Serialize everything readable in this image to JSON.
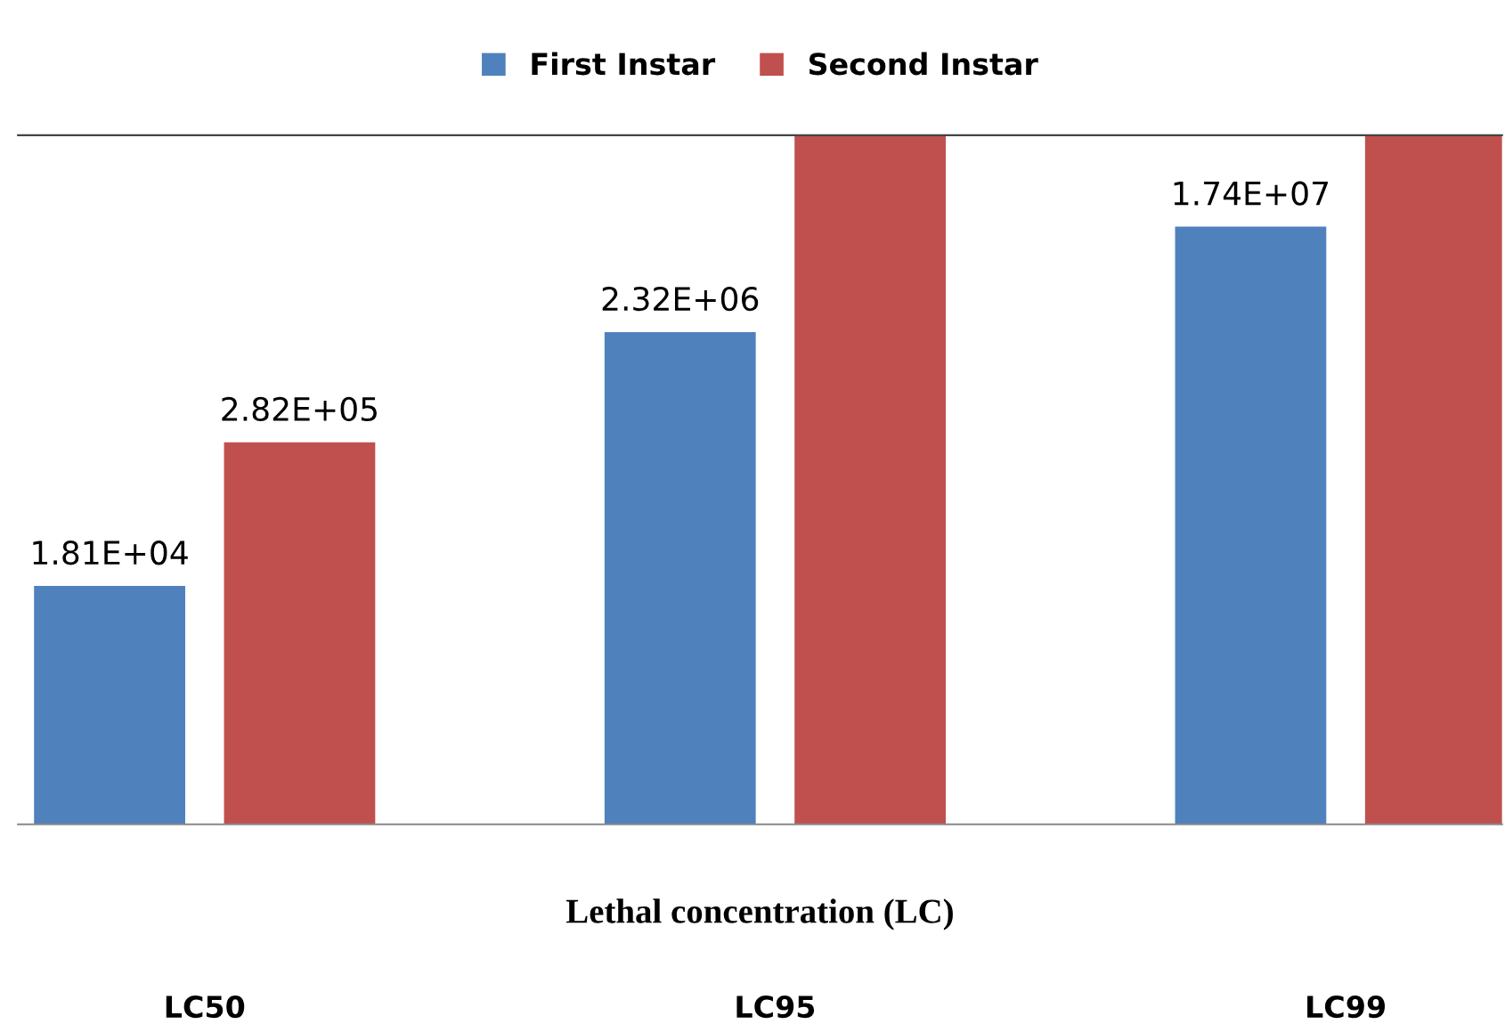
{
  "chart_data": {
    "type": "bar",
    "xlabel": "Lethal concentration (LC)",
    "categories": [
      "LC50",
      "LC95",
      "LC99"
    ],
    "series": [
      {
        "name": "First Instar",
        "color": "#4f81bd",
        "values": [
          18100,
          2320000,
          17400000
        ],
        "value_labels": [
          "1.81E+04",
          "2.32E+06",
          "1.74E+07"
        ]
      },
      {
        "name": "Second Instar",
        "color": "#c0504d",
        "values": [
          282000,
          100000000,
          100000000
        ],
        "value_labels": [
          "2.82E+05",
          null,
          null
        ]
      }
    ],
    "log": "y",
    "ylim": [
      190,
      100000000
    ],
    "tick_labels": "x",
    "legend": "top",
    "grid": false
  }
}
